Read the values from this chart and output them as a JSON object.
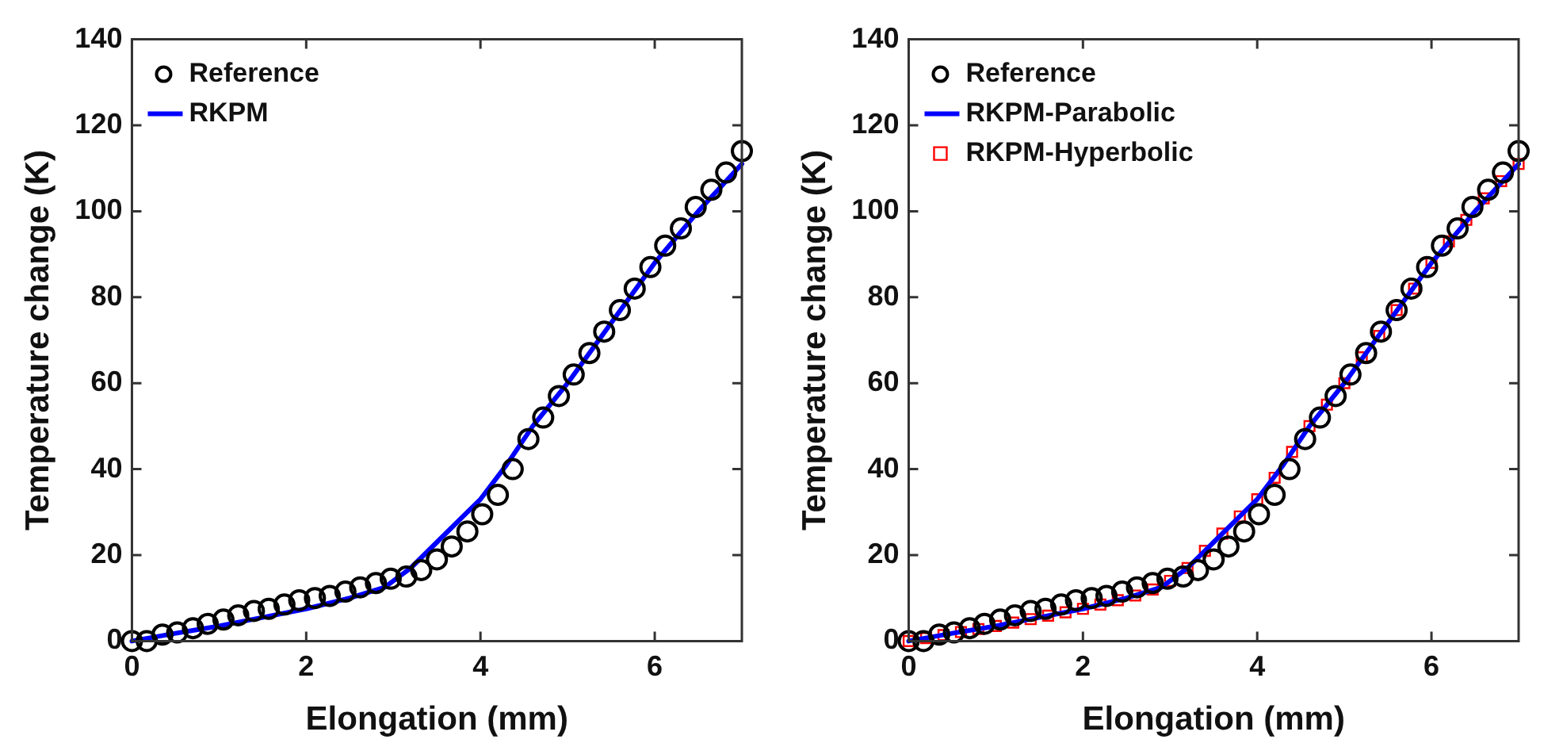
{
  "chart_data": [
    {
      "type": "line",
      "xlabel": "Elongation (mm)",
      "ylabel": "Temperature change (K)",
      "xlim": [
        0,
        7
      ],
      "ylim": [
        0,
        140
      ],
      "xticks": [
        0,
        2,
        4,
        6
      ],
      "yticks": [
        0,
        20,
        40,
        60,
        80,
        100,
        120,
        140
      ],
      "grid": false,
      "legend": "top left",
      "series": [
        {
          "name": "Reference",
          "type": "scatter",
          "marker": "circle",
          "color": "#000000",
          "x": [
            0,
            0.17,
            0.35,
            0.52,
            0.7,
            0.87,
            1.05,
            1.22,
            1.4,
            1.57,
            1.75,
            1.92,
            2.1,
            2.27,
            2.45,
            2.62,
            2.8,
            2.97,
            3.15,
            3.32,
            3.5,
            3.67,
            3.85,
            4.02,
            4.2,
            4.37,
            4.55,
            4.72,
            4.9,
            5.07,
            5.25,
            5.42,
            5.6,
            5.77,
            5.95,
            6.12,
            6.3,
            6.47,
            6.65,
            6.82,
            7.0
          ],
          "values": [
            0,
            0,
            1.5,
            2,
            3,
            4,
            5,
            6,
            7,
            7.5,
            8.5,
            9.5,
            10,
            10.5,
            11.5,
            12.5,
            13.5,
            14.5,
            15,
            16.5,
            19,
            22,
            25.5,
            29.5,
            34,
            40,
            47,
            52,
            57,
            62,
            67,
            72,
            77,
            82,
            87,
            92,
            96,
            101,
            105,
            109,
            114
          ]
        },
        {
          "name": "RKPM",
          "type": "line",
          "marker": "none",
          "line_style": "solid",
          "color": "#0000ff",
          "x": [
            0,
            0.5,
            1,
            1.5,
            2,
            2.5,
            2.9,
            3.2,
            3.5,
            3.8,
            4,
            4.3,
            4.6,
            5,
            5.5,
            6,
            6.5,
            7
          ],
          "values": [
            0,
            1.8,
            3.5,
            5.5,
            7.5,
            10,
            12.5,
            17,
            23,
            29,
            33,
            41,
            50,
            60,
            74,
            88,
            100,
            111
          ]
        }
      ]
    },
    {
      "type": "line",
      "xlabel": "Elongation (mm)",
      "ylabel": "Temperature change (K)",
      "xlim": [
        0,
        7
      ],
      "ylim": [
        0,
        140
      ],
      "xticks": [
        0,
        2,
        4,
        6
      ],
      "yticks": [
        0,
        20,
        40,
        60,
        80,
        100,
        120,
        140
      ],
      "grid": false,
      "legend": "top left",
      "series": [
        {
          "name": "Reference",
          "type": "scatter",
          "marker": "circle",
          "color": "#000000",
          "x": [
            0,
            0.17,
            0.35,
            0.52,
            0.7,
            0.87,
            1.05,
            1.22,
            1.4,
            1.57,
            1.75,
            1.92,
            2.1,
            2.27,
            2.45,
            2.62,
            2.8,
            2.97,
            3.15,
            3.32,
            3.5,
            3.67,
            3.85,
            4.02,
            4.2,
            4.37,
            4.55,
            4.72,
            4.9,
            5.07,
            5.25,
            5.42,
            5.6,
            5.77,
            5.95,
            6.12,
            6.3,
            6.47,
            6.65,
            6.82,
            7.0
          ],
          "values": [
            0,
            0,
            1.5,
            2,
            3,
            4,
            5,
            6,
            7,
            7.5,
            8.5,
            9.5,
            10,
            10.5,
            11.5,
            12.5,
            13.5,
            14.5,
            15,
            16.5,
            19,
            22,
            25.5,
            29.5,
            34,
            40,
            47,
            52,
            57,
            62,
            67,
            72,
            77,
            82,
            87,
            92,
            96,
            101,
            105,
            109,
            114
          ]
        },
        {
          "name": "RKPM-Parabolic",
          "type": "line",
          "marker": "none",
          "line_style": "solid",
          "color": "#0000ff",
          "x": [
            0,
            0.5,
            1,
            1.5,
            2,
            2.5,
            2.9,
            3.2,
            3.5,
            3.8,
            4,
            4.3,
            4.6,
            5,
            5.5,
            6,
            6.5,
            7
          ],
          "values": [
            0,
            1.8,
            3.5,
            5.5,
            7.5,
            10,
            12.5,
            17,
            23,
            29,
            33,
            41,
            50,
            60,
            74,
            88,
            100,
            111
          ]
        },
        {
          "name": "RKPM-Hyperbolic",
          "type": "scatter",
          "marker": "square",
          "color": "#ff0000",
          "x": [
            0,
            0.2,
            0.4,
            0.6,
            0.8,
            1,
            1.2,
            1.4,
            1.6,
            1.8,
            2,
            2.2,
            2.4,
            2.6,
            2.8,
            3,
            3.2,
            3.4,
            3.6,
            3.8,
            4,
            4.2,
            4.4,
            4.6,
            4.8,
            5,
            5.2,
            5.4,
            5.6,
            5.8,
            6,
            6.2,
            6.4,
            6.6,
            6.8,
            7
          ],
          "values": [
            0,
            0.7,
            1.4,
            2.1,
            2.8,
            3.5,
            4.3,
            5.1,
            5.9,
            6.7,
            7.5,
            8.5,
            9.5,
            10.6,
            12,
            14,
            17,
            21,
            25,
            29,
            33,
            38,
            44,
            50,
            55,
            60,
            66,
            71,
            77,
            82,
            88,
            93,
            98,
            103,
            107,
            111
          ]
        }
      ]
    }
  ]
}
